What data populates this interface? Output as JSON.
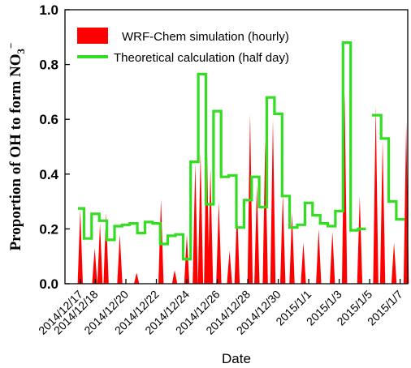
{
  "chart_data": {
    "type": "area",
    "title": "",
    "xlabel": "Date",
    "ylabel_main": "Proportion of OH to form NO",
    "ylabel_sub": "3",
    "ylabel_sup": "−",
    "ylim": [
      0.0,
      1.0
    ],
    "yticks": [
      "0.0",
      "0.2",
      "0.4",
      "0.6",
      "0.8",
      "1.0"
    ],
    "ytick_values": [
      0.0,
      0.2,
      0.4,
      0.6,
      0.8,
      1.0
    ],
    "xlim_days": [
      0,
      22.5
    ],
    "xtick_labels": [
      "2014/12/17",
      "2014/12/18",
      "2014/12/20",
      "2014/12/22",
      "2014/12/24",
      "2014/12/26",
      "2014/12/28",
      "2014/12/30",
      "2015/1/1",
      "2015/1/3",
      "2015/1/5",
      "2015/1/7"
    ],
    "xtick_positions_days": [
      1,
      2,
      4,
      6,
      8,
      10,
      12,
      14,
      16,
      18,
      20,
      22
    ],
    "legend_position": "top-left",
    "series": [
      {
        "name": "WRF-Chem  simulation  (hourly)",
        "kind": "hourly-spikes",
        "color": "#ff0000",
        "peaks": [
          [
            1.0,
            0.27
          ],
          [
            1.95,
            0.13
          ],
          [
            2.3,
            0.22
          ],
          [
            2.7,
            0.26
          ],
          [
            3.6,
            0.18
          ],
          [
            4.7,
            0.04
          ],
          [
            6.3,
            0.31
          ],
          [
            7.2,
            0.05
          ],
          [
            8.0,
            0.18
          ],
          [
            8.55,
            0.44
          ],
          [
            8.9,
            0.48
          ],
          [
            9.3,
            0.6
          ],
          [
            9.55,
            0.42
          ],
          [
            10.1,
            0.3
          ],
          [
            10.8,
            0.12
          ],
          [
            11.3,
            0.28
          ],
          [
            12.15,
            0.62
          ],
          [
            12.6,
            0.36
          ],
          [
            13.15,
            0.53
          ],
          [
            13.65,
            0.6
          ],
          [
            14.3,
            0.33
          ],
          [
            14.9,
            0.26
          ],
          [
            15.65,
            0.15
          ],
          [
            16.65,
            0.2
          ],
          [
            17.55,
            0.19
          ],
          [
            18.35,
            0.7
          ],
          [
            19.35,
            0.32
          ],
          [
            20.4,
            0.65
          ],
          [
            20.85,
            0.52
          ],
          [
            21.6,
            0.15
          ],
          [
            22.4,
            0.59
          ]
        ]
      },
      {
        "name": "Theoretical calculation (half day)",
        "kind": "half-day-step",
        "color": "#33dd22",
        "segments": [
          [
            [
              0.85,
              0.275
            ],
            [
              1.25,
              0.275
            ],
            [
              1.25,
              0.165
            ],
            [
              1.75,
              0.165
            ],
            [
              1.75,
              0.255
            ],
            [
              2.25,
              0.255
            ],
            [
              2.25,
              0.23
            ],
            [
              2.75,
              0.23
            ],
            [
              2.75,
              0.16
            ],
            [
              3.25,
              0.16
            ],
            [
              3.25,
              0.21
            ],
            [
              3.75,
              0.21
            ],
            [
              3.75,
              0.215
            ],
            [
              4.25,
              0.215
            ],
            [
              4.25,
              0.22
            ],
            [
              4.75,
              0.22
            ],
            [
              4.75,
              0.185
            ],
            [
              5.25,
              0.185
            ],
            [
              5.25,
              0.225
            ],
            [
              5.75,
              0.225
            ],
            [
              5.75,
              0.22
            ],
            [
              6.25,
              0.22
            ],
            [
              6.25,
              0.145
            ],
            [
              6.75,
              0.145
            ],
            [
              6.75,
              0.175
            ],
            [
              7.25,
              0.175
            ],
            [
              7.25,
              0.18
            ],
            [
              7.75,
              0.18
            ],
            [
              7.75,
              0.09
            ],
            [
              8.25,
              0.09
            ],
            [
              8.25,
              0.445
            ],
            [
              8.75,
              0.445
            ],
            [
              8.75,
              0.765
            ],
            [
              9.25,
              0.765
            ],
            [
              9.25,
              0.29
            ],
            [
              9.75,
              0.29
            ],
            [
              9.75,
              0.63
            ],
            [
              10.25,
              0.63
            ],
            [
              10.25,
              0.39
            ],
            [
              10.75,
              0.39
            ],
            [
              10.75,
              0.395
            ],
            [
              11.25,
              0.395
            ],
            [
              11.25,
              0.205
            ],
            [
              11.75,
              0.205
            ],
            [
              11.75,
              0.305
            ],
            [
              12.25,
              0.305
            ],
            [
              12.25,
              0.39
            ],
            [
              12.75,
              0.39
            ],
            [
              12.75,
              0.28
            ],
            [
              13.25,
              0.28
            ],
            [
              13.25,
              0.68
            ],
            [
              13.75,
              0.68
            ],
            [
              13.75,
              0.62
            ],
            [
              14.25,
              0.62
            ],
            [
              14.25,
              0.32
            ],
            [
              14.75,
              0.32
            ],
            [
              14.75,
              0.205
            ],
            [
              15.25,
              0.205
            ],
            [
              15.25,
              0.215
            ],
            [
              15.75,
              0.215
            ],
            [
              15.75,
              0.295
            ],
            [
              16.25,
              0.295
            ],
            [
              16.25,
              0.25
            ],
            [
              16.75,
              0.25
            ],
            [
              16.75,
              0.22
            ],
            [
              17.25,
              0.22
            ],
            [
              17.25,
              0.21
            ],
            [
              17.75,
              0.21
            ],
            [
              17.75,
              0.265
            ],
            [
              18.25,
              0.265
            ],
            [
              18.25,
              0.88
            ],
            [
              18.75,
              0.88
            ],
            [
              18.75,
              0.195
            ],
            [
              19.25,
              0.195
            ],
            [
              19.25,
              0.2
            ],
            [
              19.75,
              0.2
            ]
          ],
          [
            [
              20.15,
              0.615
            ],
            [
              20.75,
              0.615
            ],
            [
              20.75,
              0.53
            ],
            [
              21.25,
              0.53
            ],
            [
              21.25,
              0.3
            ],
            [
              21.75,
              0.3
            ],
            [
              21.75,
              0.235
            ],
            [
              22.3,
              0.235
            ]
          ]
        ]
      }
    ]
  }
}
